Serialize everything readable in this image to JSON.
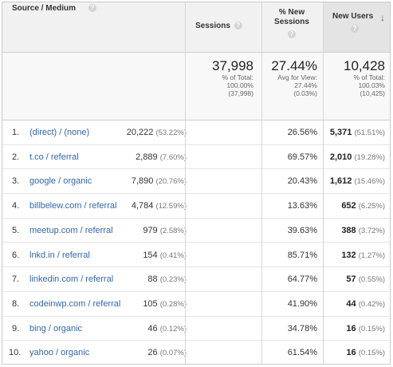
{
  "columns": {
    "source_medium": "Source / Medium",
    "sessions": "Sessions",
    "new_sessions": "% New Sessions",
    "new_users": "New Users"
  },
  "totals": {
    "sessions": {
      "value": "37,998",
      "line1": "% of Total:",
      "line2": "100.00%",
      "line3": "(37,998)"
    },
    "new_sessions": {
      "value": "27.44%",
      "line1": "Avg for View:",
      "line2": "27.44%",
      "line3": "(0.03%)"
    },
    "new_users": {
      "value": "10,428",
      "line1": "% of Total:",
      "line2": "100.03%",
      "line3": "(10,425)"
    }
  },
  "rows": [
    {
      "idx": "1.",
      "source": "(direct) / (none)",
      "sessions": "20,222",
      "sessions_pct": "(53.22%)",
      "new_sessions": "26.56%",
      "new_users": "5,371",
      "new_users_pct": "(51.51%)"
    },
    {
      "idx": "2.",
      "source": "t.co / referral",
      "sessions": "2,889",
      "sessions_pct": "(7.60%)",
      "new_sessions": "69.57%",
      "new_users": "2,010",
      "new_users_pct": "(19.28%)"
    },
    {
      "idx": "3.",
      "source": "google / organic",
      "sessions": "7,890",
      "sessions_pct": "(20.76%)",
      "new_sessions": "20.43%",
      "new_users": "1,612",
      "new_users_pct": "(15.46%)"
    },
    {
      "idx": "4.",
      "source": "billbelew.com / referral",
      "sessions": "4,784",
      "sessions_pct": "(12.59%)",
      "new_sessions": "13.63%",
      "new_users": "652",
      "new_users_pct": "(6.25%)"
    },
    {
      "idx": "5.",
      "source": "meetup.com / referral",
      "sessions": "979",
      "sessions_pct": "(2.58%)",
      "new_sessions": "39.63%",
      "new_users": "388",
      "new_users_pct": "(3.72%)"
    },
    {
      "idx": "6.",
      "source": "lnkd.in / referral",
      "sessions": "154",
      "sessions_pct": "(0.41%)",
      "new_sessions": "85.71%",
      "new_users": "132",
      "new_users_pct": "(1.27%)"
    },
    {
      "idx": "7.",
      "source": "linkedin.com / referral",
      "sessions": "88",
      "sessions_pct": "(0.23%)",
      "new_sessions": "64.77%",
      "new_users": "57",
      "new_users_pct": "(0.55%)"
    },
    {
      "idx": "8.",
      "source": "codeinwp.com / referral",
      "sessions": "105",
      "sessions_pct": "(0.28%)",
      "new_sessions": "41.90%",
      "new_users": "44",
      "new_users_pct": "(0.42%)"
    },
    {
      "idx": "9.",
      "source": "bing / organic",
      "sessions": "46",
      "sessions_pct": "(0.12%)",
      "new_sessions": "34.78%",
      "new_users": "16",
      "new_users_pct": "(0.15%)"
    },
    {
      "idx": "10.",
      "source": "yahoo / organic",
      "sessions": "26",
      "sessions_pct": "(0.07%)",
      "new_sessions": "61.54%",
      "new_users": "16",
      "new_users_pct": "(0.15%)"
    }
  ],
  "icons": {
    "help": "question-mark-icon",
    "sort": "sort-descending-arrow-icon"
  },
  "colors": {
    "link": "#3367aa",
    "header_bg": "#f1f1f1",
    "sorted_header_bg": "#e4e4e4"
  }
}
